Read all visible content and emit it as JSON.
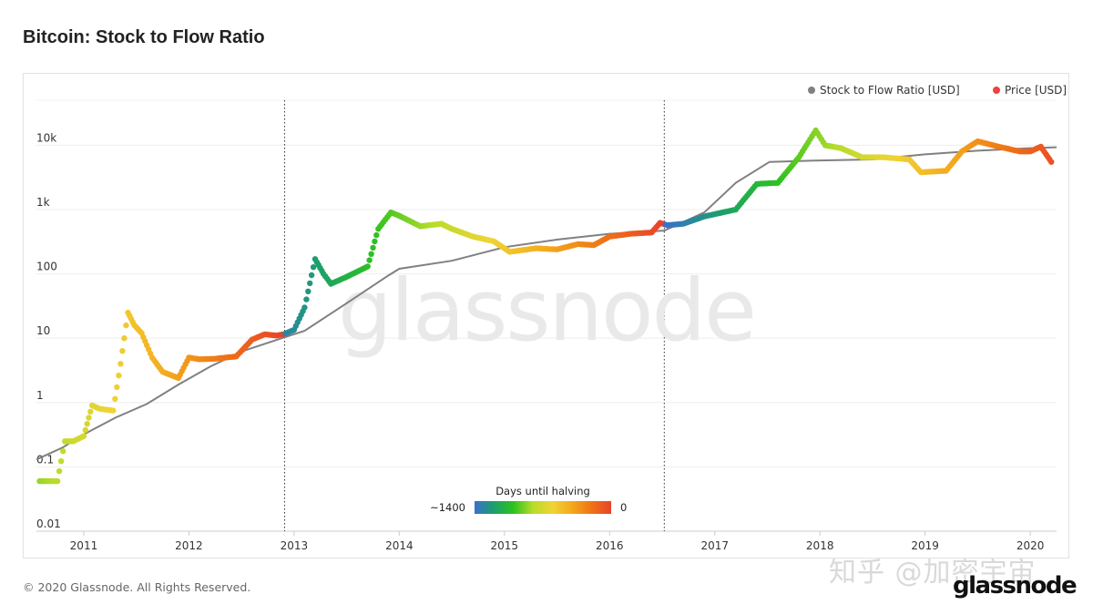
{
  "page": {
    "title": "Bitcoin: Stock to Flow Ratio",
    "copyright": "© 2020 Glassnode. All Rights Reserved.",
    "watermark": "glassnode",
    "zhihu_mark": "知乎 @加密宇宙",
    "logo": "glassnode"
  },
  "chart_data": {
    "type": "scatter",
    "title": "Bitcoin: Stock to Flow Ratio",
    "yscale": "log",
    "ylim": [
      0.01,
      50000
    ],
    "xlim": [
      2010.55,
      2020.25
    ],
    "y_ticks": [
      {
        "value": 0.01,
        "label": "0.01"
      },
      {
        "value": 0.1,
        "label": "0.1"
      },
      {
        "value": 1,
        "label": "1"
      },
      {
        "value": 10,
        "label": "10"
      },
      {
        "value": 100,
        "label": "100"
      },
      {
        "value": 1000,
        "label": "1k"
      },
      {
        "value": 10000,
        "label": "10k"
      }
    ],
    "x_ticks": [
      {
        "value": 2011,
        "label": "2011"
      },
      {
        "value": 2012,
        "label": "2012"
      },
      {
        "value": 2013,
        "label": "2013"
      },
      {
        "value": 2014,
        "label": "2014"
      },
      {
        "value": 2015,
        "label": "2015"
      },
      {
        "value": 2016,
        "label": "2016"
      },
      {
        "value": 2017,
        "label": "2017"
      },
      {
        "value": 2018,
        "label": "2018"
      },
      {
        "value": 2019,
        "label": "2019"
      },
      {
        "value": 2020,
        "label": "2020"
      }
    ],
    "halvings": [
      2012.91,
      2016.52
    ],
    "grid": "horizontal",
    "legend": {
      "position": "top-right",
      "entries": [
        {
          "name": "Stock to Flow Ratio [USD]",
          "color": "#808080"
        },
        {
          "name": "Price [USD]",
          "color": "#e8453c"
        }
      ]
    },
    "colorbar": {
      "title": "Days until halving",
      "min_label": "~1400",
      "max_label": "0",
      "stops": [
        "#3a6fd1",
        "#1aa06a",
        "#2fc21f",
        "#b8dc2a",
        "#f0d335",
        "#f4a81d",
        "#ef7216",
        "#e8432a"
      ]
    },
    "series": [
      {
        "name": "Stock to Flow Ratio [USD]",
        "color": "#808080",
        "x": [
          2010.55,
          2010.8,
          2011.0,
          2011.3,
          2011.6,
          2011.9,
          2012.2,
          2012.5,
          2012.9,
          2013.1,
          2013.5,
          2013.9,
          2014.0,
          2014.5,
          2015.0,
          2015.5,
          2016.0,
          2016.52,
          2016.9,
          2017.2,
          2017.52,
          2018.0,
          2018.5,
          2019.0,
          2019.5,
          2020.0,
          2020.25
        ],
        "y": [
          0.13,
          0.2,
          0.32,
          0.58,
          0.95,
          1.9,
          3.6,
          6.2,
          10.2,
          13,
          35,
          95,
          120,
          160,
          260,
          340,
          420,
          470,
          900,
          2600,
          5500,
          5800,
          6000,
          7200,
          8200,
          9000,
          9300
        ]
      },
      {
        "name": "Price [USD]",
        "color": "#e8453c",
        "x": [
          2010.58,
          2010.65,
          2010.75,
          2010.82,
          2010.9,
          2011.0,
          2011.08,
          2011.15,
          2011.28,
          2011.35,
          2011.42,
          2011.48,
          2011.55,
          2011.65,
          2011.75,
          2011.9,
          2012.0,
          2012.1,
          2012.25,
          2012.45,
          2012.6,
          2012.72,
          2012.83,
          2012.9,
          2013.0,
          2013.1,
          2013.2,
          2013.28,
          2013.35,
          2013.5,
          2013.7,
          2013.8,
          2013.92,
          2014.0,
          2014.2,
          2014.4,
          2014.5,
          2014.7,
          2014.9,
          2015.05,
          2015.3,
          2015.5,
          2015.7,
          2015.85,
          2016.0,
          2016.2,
          2016.4,
          2016.48,
          2016.55,
          2016.7,
          2016.9,
          2017.2,
          2017.4,
          2017.6,
          2017.8,
          2017.96,
          2018.05,
          2018.2,
          2018.4,
          2018.6,
          2018.85,
          2018.96,
          2019.2,
          2019.35,
          2019.5,
          2019.7,
          2019.9,
          2020.0,
          2020.1,
          2020.2
        ],
        "y": [
          0.06,
          0.06,
          0.06,
          0.25,
          0.25,
          0.3,
          0.9,
          0.8,
          0.75,
          4,
          25,
          16,
          12,
          5,
          3,
          2.4,
          5,
          4.7,
          4.8,
          5.2,
          9.5,
          11.5,
          11,
          11.5,
          13.5,
          30,
          170,
          100,
          70,
          90,
          130,
          500,
          900,
          800,
          550,
          600,
          500,
          380,
          320,
          220,
          250,
          240,
          290,
          280,
          380,
          420,
          440,
          620,
          570,
          600,
          780,
          1000,
          2500,
          2600,
          6500,
          17000,
          10000,
          9000,
          6500,
          6500,
          6000,
          3800,
          4000,
          8000,
          11500,
          9500,
          8000,
          8000,
          9500,
          5500
        ]
      }
    ]
  }
}
